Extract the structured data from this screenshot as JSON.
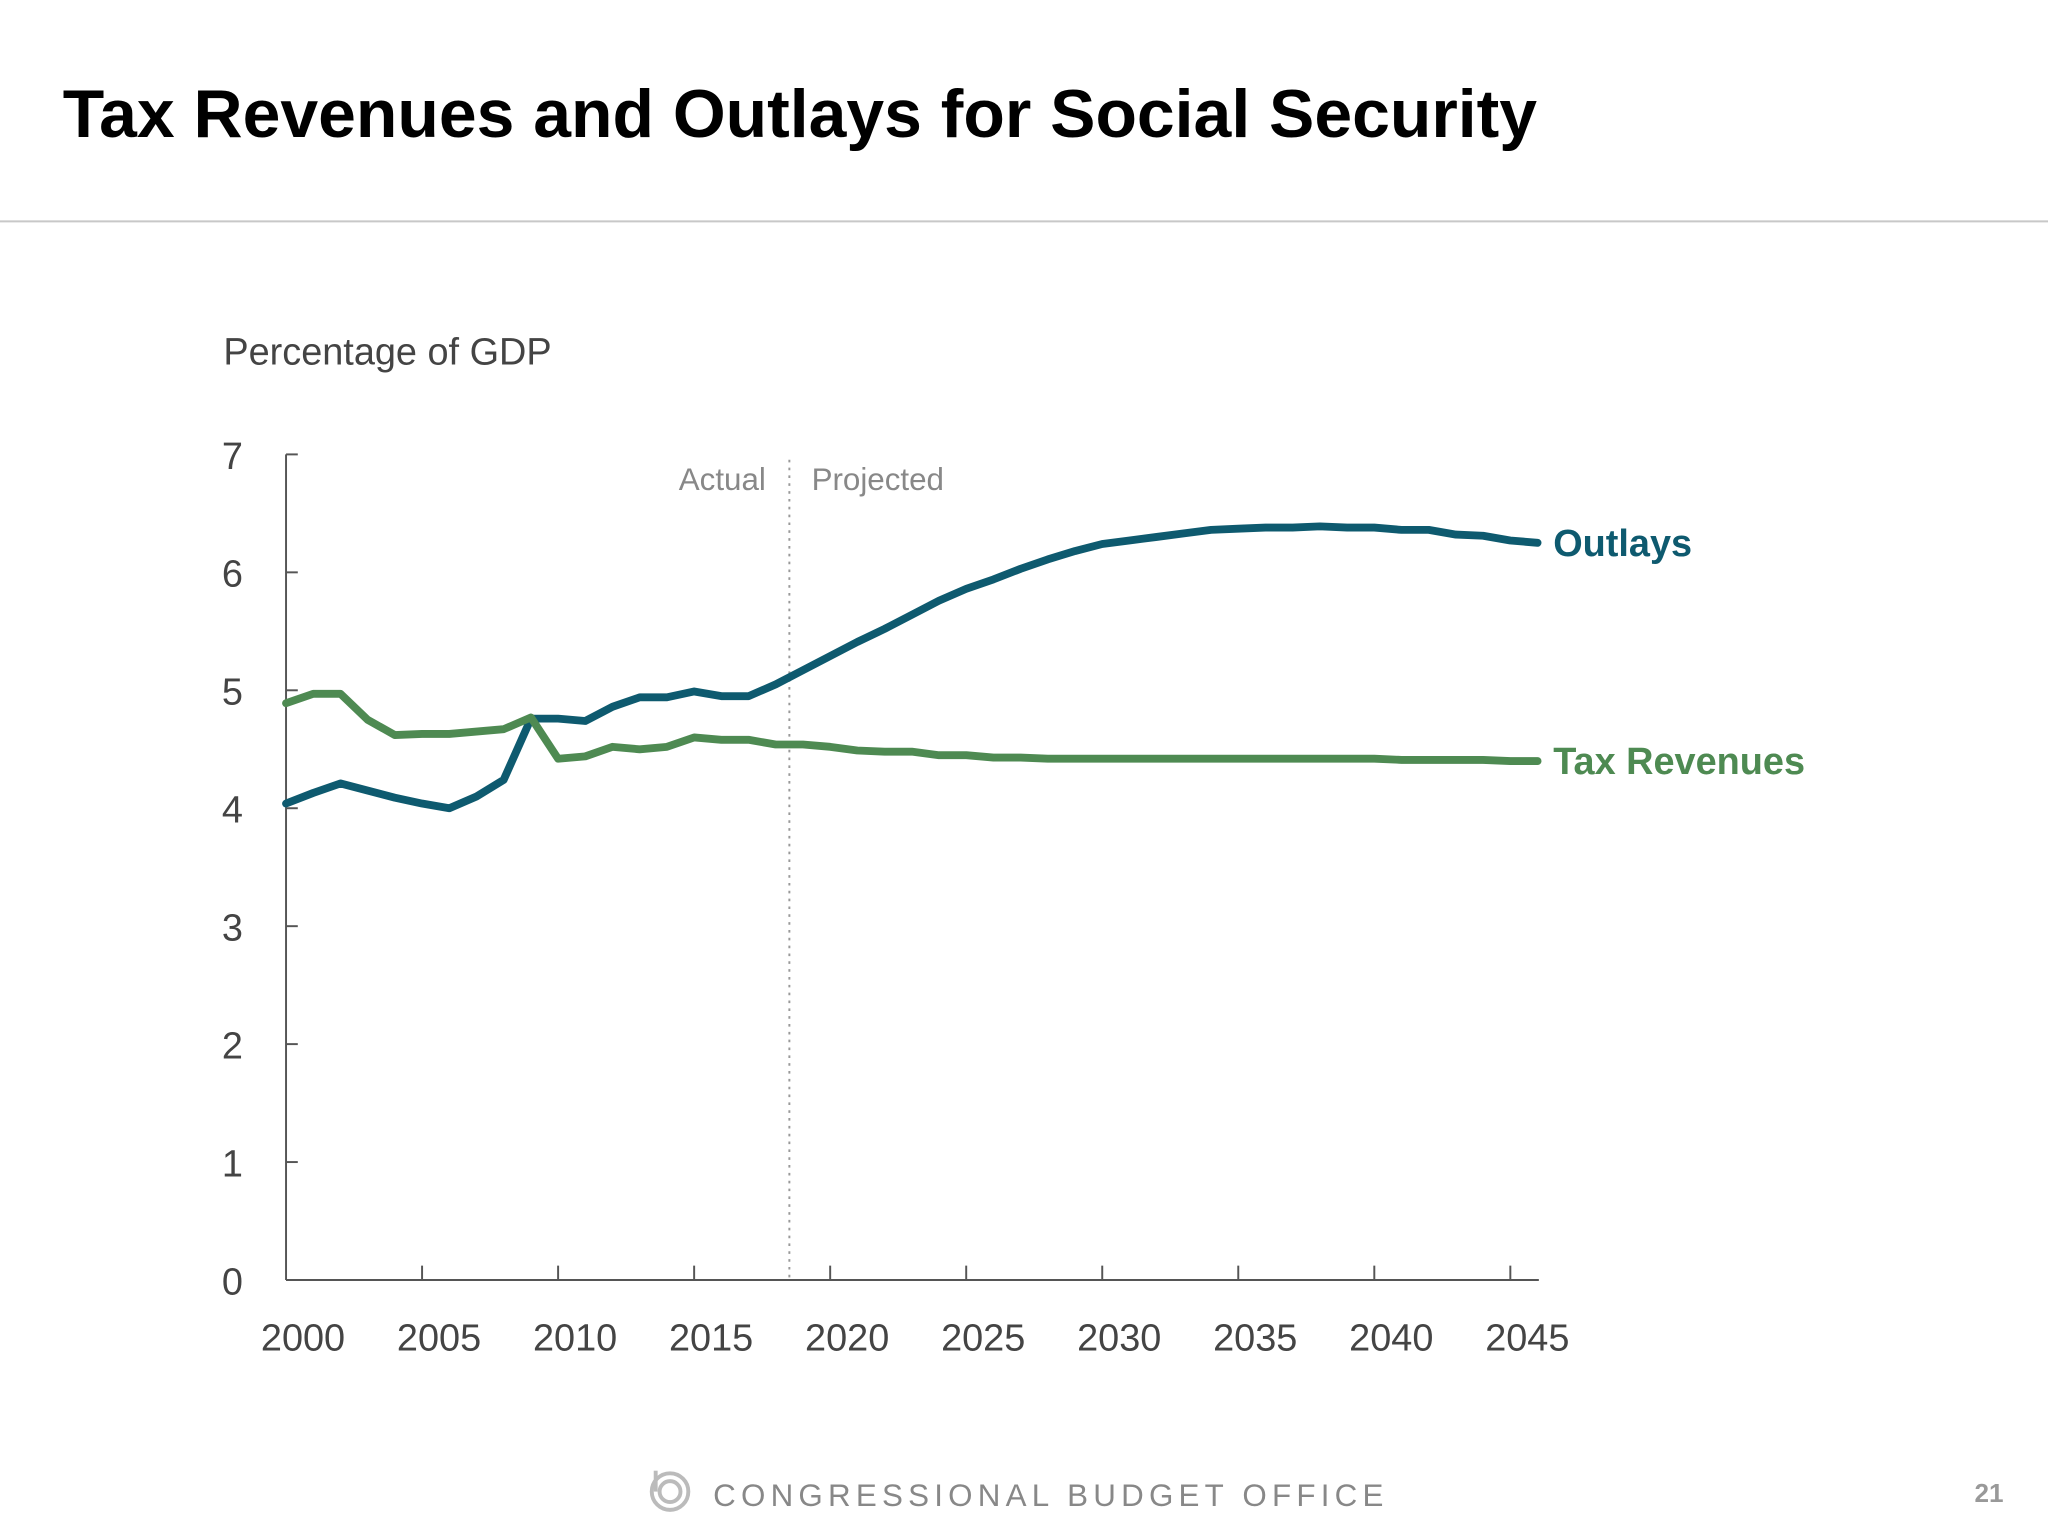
{
  "header": {
    "title": "Tax Revenues and Outlays for Social Security"
  },
  "footer": {
    "organization": "CONGRESSIONAL BUDGET OFFICE",
    "page_number": "21",
    "logo_icon": "cbo-logo-icon"
  },
  "chart_data": {
    "type": "line",
    "title": "Tax Revenues and Outlays for Social Security",
    "ylabel": "Percentage of GDP",
    "xlabel": "",
    "ylim": [
      0,
      7
    ],
    "xlim": [
      2000,
      2046
    ],
    "y_ticks": [
      "0",
      "1",
      "2",
      "3",
      "4",
      "5",
      "6",
      "7"
    ],
    "x_ticks": [
      "2000",
      "2005",
      "2010",
      "2015",
      "2020",
      "2025",
      "2030",
      "2035",
      "2040",
      "2045"
    ],
    "grid": false,
    "divider": {
      "year": 2018.5,
      "left_label": "Actual",
      "right_label": "Projected"
    },
    "x": [
      2000,
      2001,
      2002,
      2003,
      2004,
      2005,
      2006,
      2007,
      2008,
      2009,
      2010,
      2011,
      2012,
      2013,
      2014,
      2015,
      2016,
      2017,
      2018,
      2019,
      2020,
      2021,
      2022,
      2023,
      2024,
      2025,
      2026,
      2027,
      2028,
      2029,
      2030,
      2031,
      2032,
      2033,
      2034,
      2035,
      2036,
      2037,
      2038,
      2039,
      2040,
      2041,
      2042,
      2043,
      2044,
      2045,
      2046
    ],
    "series": [
      {
        "name": "Outlays",
        "color": "#0e5a6f",
        "values": [
          4.04,
          4.13,
          4.21,
          4.15,
          4.09,
          4.04,
          4.0,
          4.1,
          4.24,
          4.76,
          4.76,
          4.74,
          4.86,
          4.94,
          4.94,
          4.99,
          4.95,
          4.95,
          5.05,
          5.17,
          5.29,
          5.41,
          5.52,
          5.64,
          5.76,
          5.86,
          5.94,
          6.03,
          6.11,
          6.18,
          6.24,
          6.27,
          6.3,
          6.33,
          6.36,
          6.37,
          6.38,
          6.38,
          6.39,
          6.38,
          6.38,
          6.36,
          6.36,
          6.32,
          6.31,
          6.27,
          6.25
        ]
      },
      {
        "name": "Tax Revenues",
        "color": "#4e8a52",
        "values": [
          4.89,
          4.97,
          4.97,
          4.75,
          4.62,
          4.63,
          4.63,
          4.65,
          4.67,
          4.77,
          4.42,
          4.44,
          4.52,
          4.5,
          4.52,
          4.6,
          4.58,
          4.58,
          4.54,
          4.54,
          4.52,
          4.49,
          4.48,
          4.48,
          4.45,
          4.45,
          4.43,
          4.43,
          4.42,
          4.42,
          4.42,
          4.42,
          4.42,
          4.42,
          4.42,
          4.42,
          4.42,
          4.42,
          4.42,
          4.42,
          4.42,
          4.41,
          4.41,
          4.41,
          4.41,
          4.4,
          4.4
        ]
      }
    ]
  }
}
